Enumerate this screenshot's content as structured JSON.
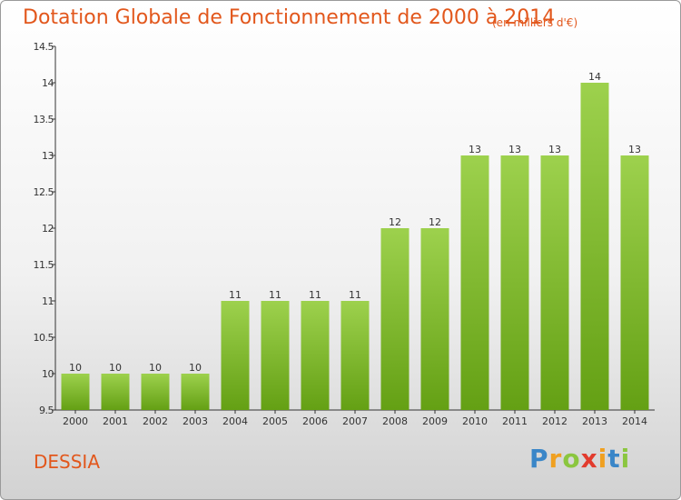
{
  "header": {
    "title": "Dotation Globale de Fonctionnement de 2000 à 2014",
    "unit": "(en milliers d'€)"
  },
  "footer": {
    "commune": "DESSIA",
    "logo": [
      "P",
      "r",
      "o",
      "x",
      "i",
      "t",
      "i"
    ]
  },
  "colors": {
    "title": "#e2571c",
    "bar_top": "#9dd14d",
    "bar_bottom": "#64a014",
    "axis": "#333333"
  },
  "chart_data": {
    "type": "bar",
    "title": "Dotation Globale de Fonctionnement de 2000 à 2014",
    "xlabel": "",
    "ylabel": "",
    "categories": [
      "2000",
      "2001",
      "2002",
      "2003",
      "2004",
      "2005",
      "2006",
      "2007",
      "2008",
      "2009",
      "2010",
      "2011",
      "2012",
      "2013",
      "2014"
    ],
    "values": [
      10,
      10,
      10,
      10,
      11,
      11,
      11,
      11,
      12,
      12,
      13,
      13,
      13,
      14,
      13
    ],
    "labels": [
      "10",
      "10",
      "10",
      "10",
      "11",
      "11",
      "11",
      "11",
      "12",
      "12",
      "13",
      "13",
      "13",
      "14",
      "13"
    ],
    "ylim": [
      9.5,
      14.5
    ],
    "yticks": [
      9.5,
      10,
      10.5,
      11,
      11.5,
      12,
      12.5,
      13,
      13.5,
      14,
      14.5
    ],
    "ytick_labels": [
      "9.5",
      "10",
      "10.5",
      "11",
      "11.5",
      "12",
      "12.5",
      "13",
      "13.5",
      "14",
      "14.5"
    ],
    "grid": false,
    "legend": "none"
  }
}
